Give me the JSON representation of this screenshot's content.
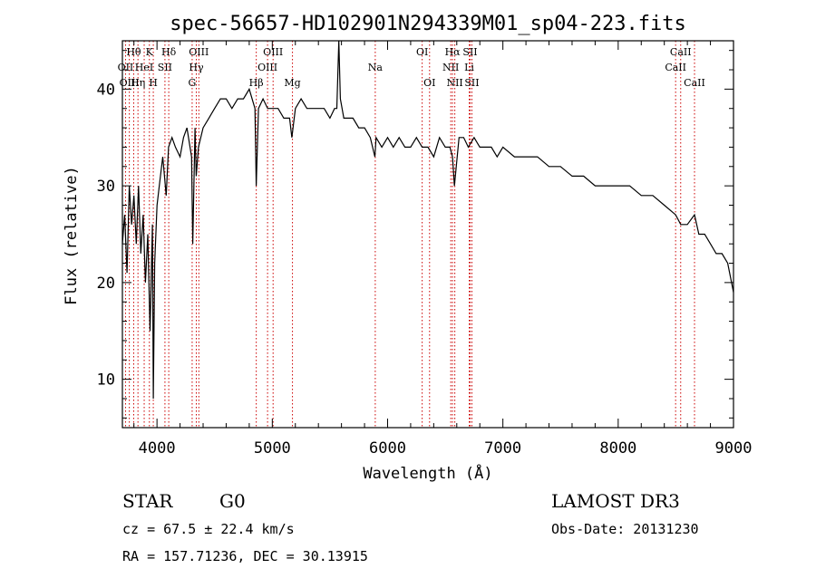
{
  "chart_data": {
    "type": "line",
    "title": "spec-56657-HD102901N294339M01_sp04-223.fits",
    "xlabel": "Wavelength (Å)",
    "ylabel": "Flux (relative)",
    "xlim": [
      3700,
      9000
    ],
    "ylim": [
      5,
      45
    ],
    "x_ticks": [
      4000,
      5000,
      6000,
      7000,
      8000,
      9000
    ],
    "y_ticks": [
      10,
      20,
      30,
      40
    ],
    "grid": false,
    "series": [
      {
        "x": [
          3700,
          3720,
          3740,
          3760,
          3780,
          3800,
          3820,
          3840,
          3860,
          3880,
          3900,
          3920,
          3940,
          3960,
          3968,
          3980,
          4000,
          4020,
          4050,
          4080,
          4100,
          4130,
          4160,
          4200,
          4230,
          4260,
          4300,
          4310,
          4330,
          4340,
          4360,
          4400,
          4450,
          4500,
          4550,
          4600,
          4650,
          4700,
          4750,
          4800,
          4850,
          4861,
          4880,
          4920,
          4960,
          5000,
          5050,
          5100,
          5150,
          5170,
          5200,
          5250,
          5300,
          5350,
          5400,
          5450,
          5500,
          5540,
          5560,
          5577,
          5590,
          5620,
          5650,
          5700,
          5750,
          5800,
          5850,
          5890,
          5900,
          5950,
          6000,
          6050,
          6100,
          6150,
          6200,
          6250,
          6300,
          6350,
          6400,
          6450,
          6500,
          6540,
          6563,
          6580,
          6620,
          6660,
          6700,
          6750,
          6800,
          6850,
          6900,
          6950,
          7000,
          7100,
          7200,
          7300,
          7400,
          7500,
          7600,
          7700,
          7800,
          7900,
          8000,
          8100,
          8200,
          8300,
          8400,
          8498,
          8542,
          8600,
          8662,
          8700,
          8750,
          8800,
          8850,
          8900,
          8950,
          9000
        ],
        "y": [
          24,
          27,
          21,
          30,
          26,
          29,
          24,
          30,
          23,
          27,
          20,
          25,
          15,
          26,
          8,
          22,
          28,
          30,
          33,
          29,
          34,
          35,
          34,
          33,
          35,
          36,
          33,
          24,
          36,
          31,
          34,
          36,
          37,
          38,
          39,
          39,
          38,
          39,
          39,
          40,
          38,
          30,
          38,
          39,
          38,
          38,
          38,
          37,
          37,
          35,
          38,
          39,
          38,
          38,
          38,
          38,
          37,
          38,
          38,
          46,
          39,
          37,
          37,
          37,
          36,
          36,
          35,
          33,
          35,
          34,
          35,
          34,
          35,
          34,
          34,
          35,
          34,
          34,
          33,
          35,
          34,
          34,
          33,
          30,
          35,
          35,
          34,
          35,
          34,
          34,
          34,
          33,
          34,
          33,
          33,
          33,
          32,
          32,
          31,
          31,
          30,
          30,
          30,
          30,
          29,
          29,
          28,
          27,
          26,
          26,
          27,
          25,
          25,
          24,
          23,
          23,
          22,
          19
        ]
      }
    ],
    "spectral_lines": [
      {
        "label": "Hθ",
        "wavelength": 3798,
        "row": 1
      },
      {
        "label": "K",
        "wavelength": 3934,
        "row": 1
      },
      {
        "label": "Hδ",
        "wavelength": 4102,
        "row": 1
      },
      {
        "label": "OII",
        "wavelength": 3727,
        "row": 2
      },
      {
        "label": "HeI",
        "wavelength": 3889,
        "row": 2
      },
      {
        "label": "SII",
        "wavelength": 4069,
        "row": 2
      },
      {
        "label": "OIII",
        "wavelength": 3760,
        "row": 3
      },
      {
        "label": "Hη",
        "wavelength": 3835,
        "row": 3
      },
      {
        "label": "H",
        "wavelength": 3968,
        "row": 3
      },
      {
        "label": "OIII",
        "wavelength": 4363,
        "row": 1
      },
      {
        "label": "Hγ",
        "wavelength": 4341,
        "row": 2
      },
      {
        "label": "G",
        "wavelength": 4305,
        "row": 3
      },
      {
        "label": "OIII",
        "wavelength": 5007,
        "row": 1
      },
      {
        "label": "OIII",
        "wavelength": 4959,
        "row": 2
      },
      {
        "label": "Hβ",
        "wavelength": 4861,
        "row": 3
      },
      {
        "label": "Mg",
        "wavelength": 5175,
        "row": 3
      },
      {
        "label": "Na",
        "wavelength": 5893,
        "row": 2
      },
      {
        "label": "OI",
        "wavelength": 6300,
        "row": 1
      },
      {
        "label": "OI",
        "wavelength": 6364,
        "row": 3
      },
      {
        "label": "Hα",
        "wavelength": 6563,
        "row": 1
      },
      {
        "label": "SII",
        "wavelength": 6716,
        "row": 1
      },
      {
        "label": "NII",
        "wavelength": 6548,
        "row": 2
      },
      {
        "label": "Li",
        "wavelength": 6708,
        "row": 2
      },
      {
        "label": "NII",
        "wavelength": 6583,
        "row": 3
      },
      {
        "label": "SII",
        "wavelength": 6731,
        "row": 3
      },
      {
        "label": "CaII",
        "wavelength": 8542,
        "row": 1
      },
      {
        "label": "CaII",
        "wavelength": 8498,
        "row": 2
      },
      {
        "label": "CaII",
        "wavelength": 8662,
        "row": 3
      }
    ],
    "line_color": "#000000",
    "marker_color": "#cc0000"
  },
  "info": {
    "class": "STAR",
    "subclass": "G0",
    "survey": "LAMOST DR3",
    "cz": "cz = 67.5 ± 22.4 km/s",
    "obs_date": "Obs-Date: 20131230",
    "radec": "RA = 157.71236, DEC =  30.13915"
  }
}
